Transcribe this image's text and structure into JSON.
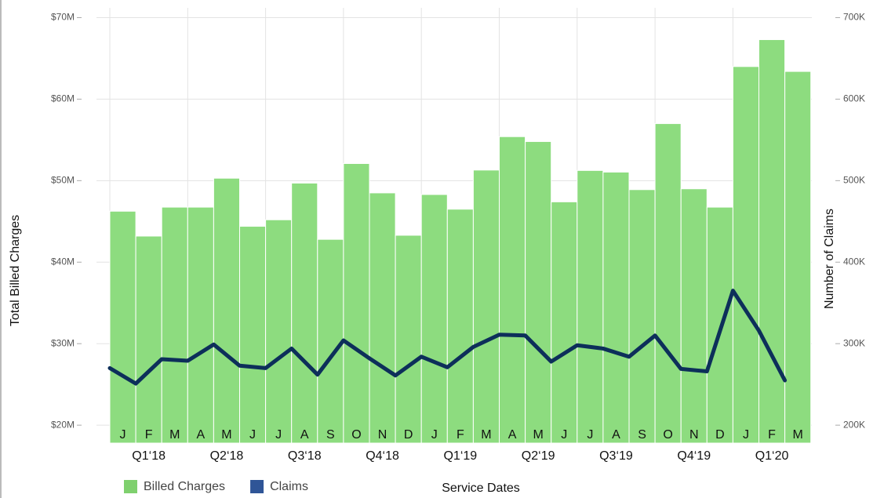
{
  "chart_data": {
    "type": "bar",
    "x_label": "Service Dates",
    "y_label": "Total Billed Charges",
    "y2_label": "Number of Claims",
    "categories": [
      "J",
      "F",
      "M",
      "A",
      "M",
      "J",
      "J",
      "A",
      "S",
      "O",
      "N",
      "D",
      "J",
      "F",
      "M",
      "A",
      "M",
      "J",
      "J",
      "A",
      "S",
      "O",
      "N",
      "D",
      "J",
      "F",
      "M"
    ],
    "quarters": [
      "Q1‘18",
      "Q2‘18",
      "Q3‘18",
      "Q4‘18",
      "Q1‘19",
      "Q2‘19",
      "Q3‘19",
      "Q4‘19",
      "Q1‘20"
    ],
    "series": [
      {
        "name": "Billed Charges",
        "type": "bar",
        "axis": "y",
        "color": "#8ddc7f",
        "legend_color": "#7fd06e",
        "values": [
          46.25,
          43.2,
          46.75,
          46.75,
          50.3,
          44.4,
          45.2,
          49.7,
          42.8,
          52.1,
          48.5,
          43.3,
          48.3,
          46.5,
          51.3,
          55.4,
          54.8,
          47.4,
          51.25,
          51.05,
          48.9,
          57.0,
          49.0,
          46.75,
          64.0,
          67.3,
          63.4
        ]
      },
      {
        "name": "Claims",
        "type": "line",
        "axis": "y2",
        "color": "#0d2f5a",
        "legend_color": "#2f5597",
        "values": [
          270000,
          251000,
          281000,
          279000,
          299000,
          273000,
          270000,
          294000,
          262000,
          304000,
          282000,
          261000,
          284000,
          271000,
          296000,
          311000,
          310000,
          278000,
          298000,
          294000,
          284000,
          310000,
          269000,
          266000,
          365000,
          316000,
          255000
        ]
      }
    ],
    "ylim": [
      17.8,
      71.2
    ],
    "yticks": [
      {
        "value": 20,
        "label": "$20M"
      },
      {
        "value": 30,
        "label": "$30M"
      },
      {
        "value": 40,
        "label": "$40M"
      },
      {
        "value": 50,
        "label": "$50M"
      },
      {
        "value": 60,
        "label": "$60M"
      },
      {
        "value": 70,
        "label": "$70M"
      }
    ],
    "y2lim": [
      178000,
      712000
    ],
    "y2ticks": [
      {
        "value": 200000,
        "label": "200K"
      },
      {
        "value": 300000,
        "label": "300K"
      },
      {
        "value": 400000,
        "label": "400K"
      },
      {
        "value": 500000,
        "label": "500K"
      },
      {
        "value": 600000,
        "label": "600K"
      },
      {
        "value": 700000,
        "label": "700K"
      }
    ],
    "grid": true
  }
}
